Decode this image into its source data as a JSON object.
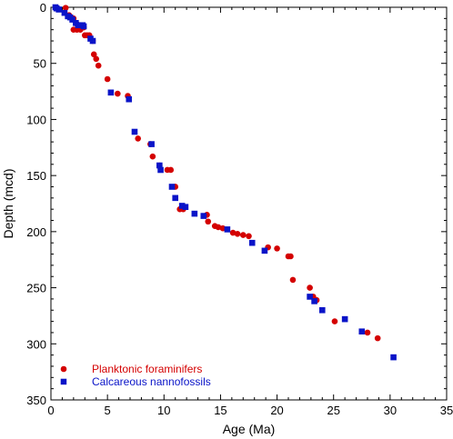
{
  "chart_data": {
    "type": "scatter",
    "title": "",
    "xlabel": "Age (Ma)",
    "ylabel": "Depth (mcd)",
    "xlim": [
      0,
      35
    ],
    "ylim": [
      0,
      350
    ],
    "y_inverted": true,
    "x_ticks": [
      0,
      5,
      10,
      15,
      20,
      25,
      30,
      35
    ],
    "y_ticks": [
      0,
      50,
      100,
      150,
      200,
      250,
      300,
      350
    ],
    "grid": false,
    "legend_position": "bottom-left",
    "series": [
      {
        "name": "Planktonic foraminifers",
        "marker": "circle",
        "color": "#d40000",
        "points": [
          [
            1.3,
            0.5
          ],
          [
            1.6,
            7
          ],
          [
            2.0,
            10
          ],
          [
            2.3,
            15
          ],
          [
            2.0,
            20
          ],
          [
            2.3,
            20
          ],
          [
            2.6,
            20
          ],
          [
            2.9,
            18
          ],
          [
            3.0,
            25
          ],
          [
            3.2,
            25
          ],
          [
            3.4,
            25
          ],
          [
            3.7,
            30
          ],
          [
            3.8,
            42
          ],
          [
            4.0,
            46
          ],
          [
            4.2,
            52
          ],
          [
            5.0,
            64
          ],
          [
            5.9,
            77
          ],
          [
            6.8,
            79
          ],
          [
            7.7,
            117
          ],
          [
            8.8,
            122
          ],
          [
            9.0,
            133
          ],
          [
            9.6,
            141
          ],
          [
            10.3,
            145
          ],
          [
            10.6,
            145
          ],
          [
            11.0,
            160
          ],
          [
            11.4,
            180
          ],
          [
            11.7,
            180
          ],
          [
            13.8,
            185
          ],
          [
            13.9,
            191
          ],
          [
            14.5,
            195
          ],
          [
            14.8,
            196
          ],
          [
            15.2,
            197
          ],
          [
            16.1,
            201
          ],
          [
            16.5,
            202
          ],
          [
            17.0,
            203
          ],
          [
            17.5,
            204
          ],
          [
            19.2,
            214
          ],
          [
            20.0,
            215
          ],
          [
            21.0,
            222
          ],
          [
            21.2,
            222
          ],
          [
            21.4,
            243
          ],
          [
            22.9,
            250
          ],
          [
            23.2,
            258
          ],
          [
            23.5,
            261
          ],
          [
            25.1,
            280
          ],
          [
            28.0,
            290
          ],
          [
            28.9,
            295
          ]
        ]
      },
      {
        "name": "Calcareous nannofossils",
        "marker": "square",
        "color": "#0a14c8",
        "points": [
          [
            0.4,
            0
          ],
          [
            0.5,
            1
          ],
          [
            0.7,
            2
          ],
          [
            1.2,
            5
          ],
          [
            1.5,
            8
          ],
          [
            1.7,
            9
          ],
          [
            1.9,
            11
          ],
          [
            2.2,
            14
          ],
          [
            2.4,
            16
          ],
          [
            2.8,
            16
          ],
          [
            2.9,
            17
          ],
          [
            3.5,
            28
          ],
          [
            3.7,
            30
          ],
          [
            5.3,
            76
          ],
          [
            6.9,
            82
          ],
          [
            7.4,
            111
          ],
          [
            8.9,
            122
          ],
          [
            9.6,
            141
          ],
          [
            9.7,
            145
          ],
          [
            10.7,
            160
          ],
          [
            11.0,
            170
          ],
          [
            11.6,
            177
          ],
          [
            11.9,
            178
          ],
          [
            12.7,
            184
          ],
          [
            13.5,
            186
          ],
          [
            15.6,
            198
          ],
          [
            17.8,
            210
          ],
          [
            18.9,
            217
          ],
          [
            22.9,
            258
          ],
          [
            23.3,
            262
          ],
          [
            24.0,
            270
          ],
          [
            26.0,
            278
          ],
          [
            27.5,
            289
          ],
          [
            30.3,
            312
          ]
        ]
      }
    ]
  }
}
